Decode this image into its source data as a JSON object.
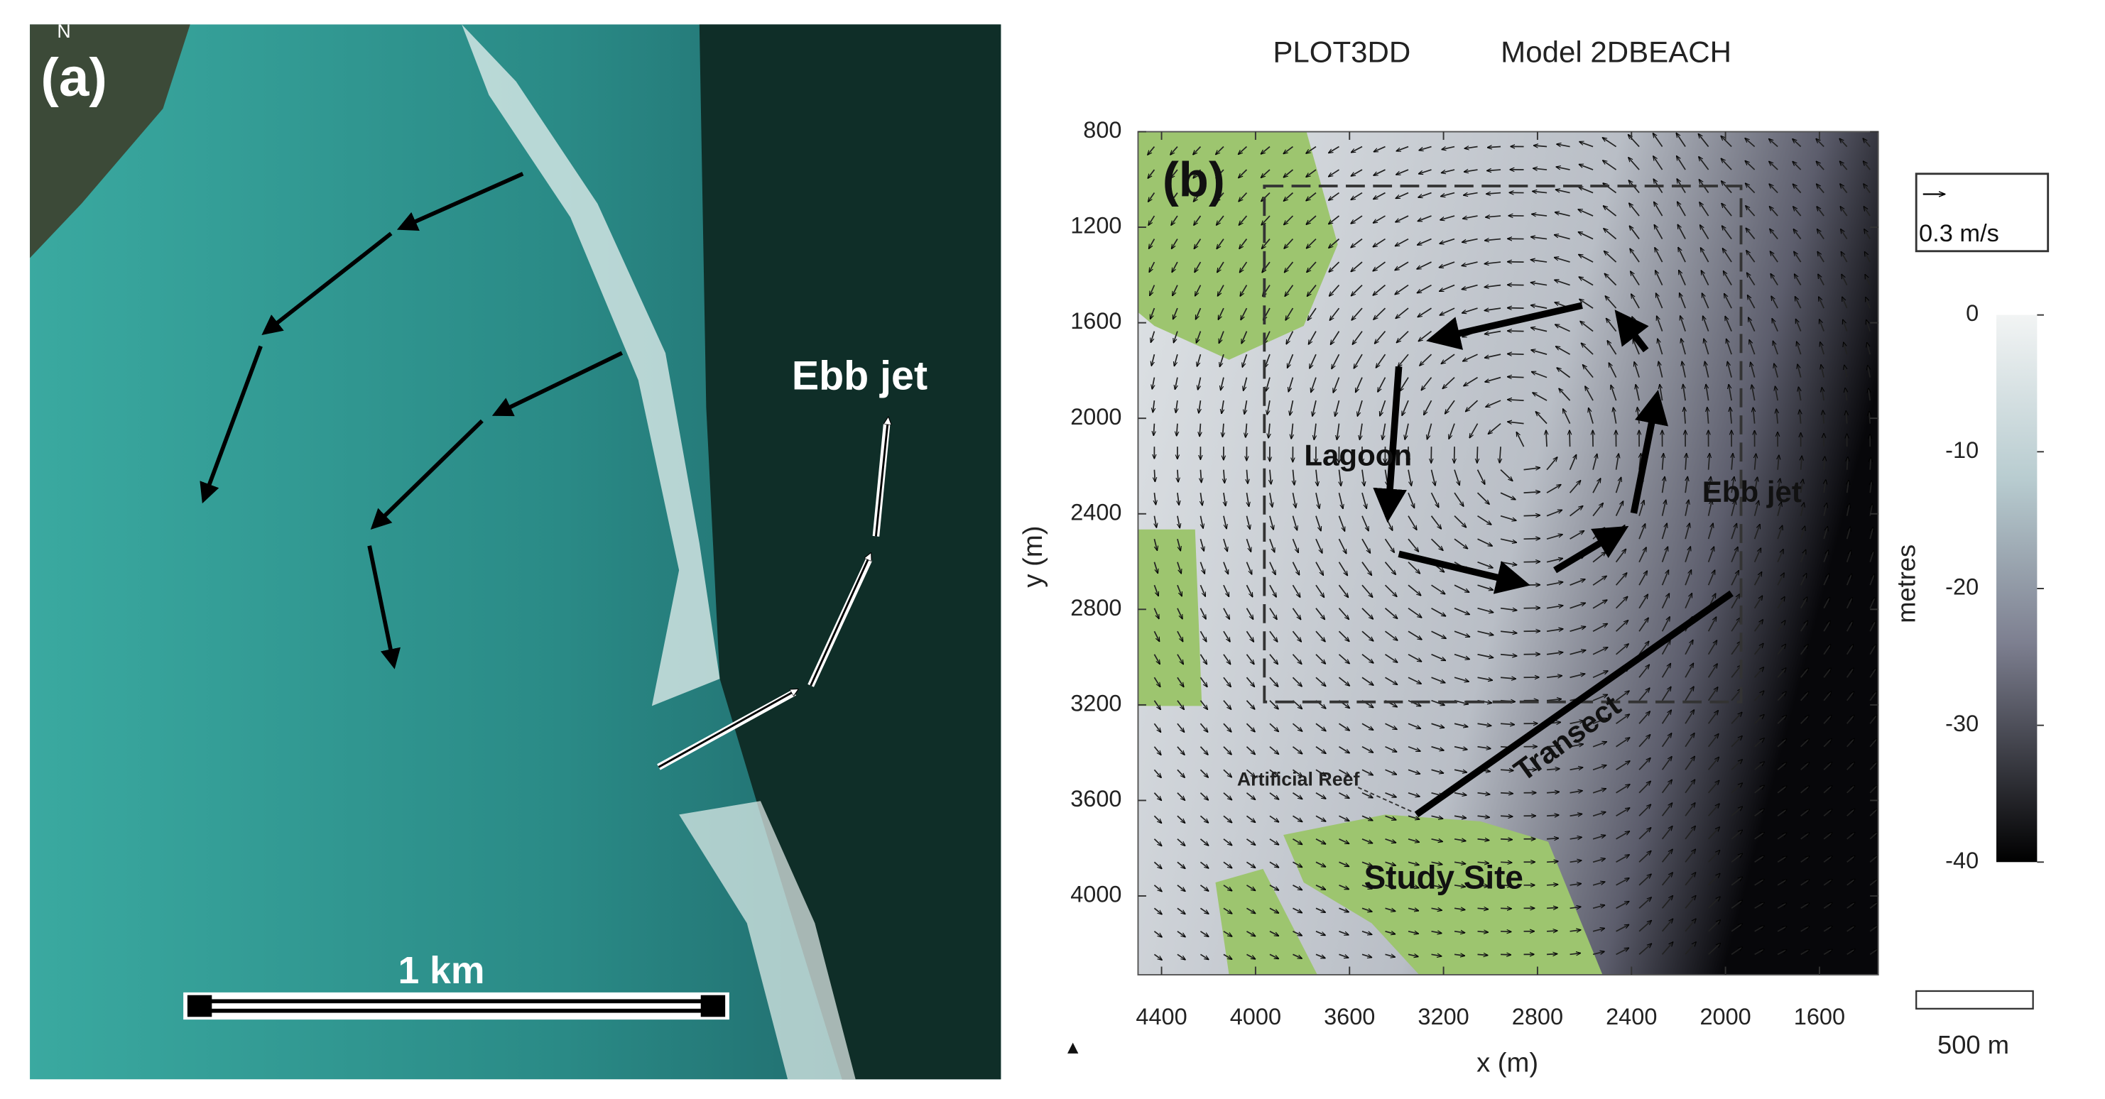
{
  "panel_a": {
    "north": "N",
    "label": "(a)",
    "annotation": "Ebb jet",
    "scale_label": "1 km"
  },
  "panel_b": {
    "title_left": "PLOT3DD",
    "title_right": "Model 2DBEACH",
    "label": "(b)",
    "xlabel": "x (m)",
    "ylabel": "y (m)",
    "xlim": [
      4500,
      1350
    ],
    "xticks": [
      4400,
      4000,
      3600,
      3200,
      2800,
      2400,
      2000,
      1600
    ],
    "ylim": [
      4330,
      800
    ],
    "yticks": [
      800,
      1200,
      1600,
      2000,
      2400,
      2800,
      3200,
      3600,
      4000
    ],
    "annotations": {
      "lagoon": "Lagoon",
      "ebb_jet": "Ebb jet",
      "transect": "Transect",
      "reef": "Artificial Reef",
      "site": "Study Site"
    },
    "vector_legend": "0.3 m/s",
    "scale_label": "500 m",
    "colorbar": {
      "label": "metres",
      "lim": [
        -40,
        0
      ],
      "ticks": [
        0,
        -10,
        -20,
        -30,
        -40
      ]
    }
  }
}
